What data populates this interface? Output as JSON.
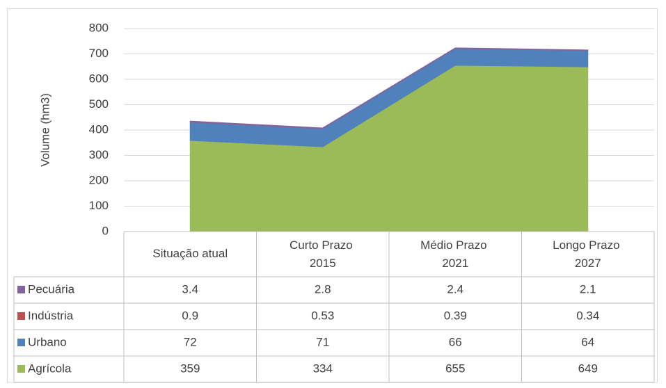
{
  "chart_data": {
    "type": "stacked-area",
    "y_label": "Volume (hm3)",
    "categories": [
      "Situação atual",
      "Curto Prazo 2015",
      "Médio Prazo 2021",
      "Longo Prazo 2027"
    ],
    "series": [
      {
        "name": "Pecuária",
        "color": "#8064a2",
        "values": [
          3.4,
          2.8,
          2.4,
          2.1
        ]
      },
      {
        "name": "Indústria",
        "color": "#c0504d",
        "values": [
          0.9,
          0.53,
          0.39,
          0.34
        ]
      },
      {
        "name": "Urbano",
        "color": "#4f81bd",
        "values": [
          72,
          71,
          66,
          64
        ]
      },
      {
        "name": "Agrícola",
        "color": "#9bbb59",
        "values": [
          359,
          334,
          655,
          649
        ]
      }
    ],
    "ylim": [
      0,
      800
    ],
    "yticks": [
      0,
      100,
      200,
      300,
      400,
      500,
      600,
      700,
      800
    ],
    "grid": true
  }
}
